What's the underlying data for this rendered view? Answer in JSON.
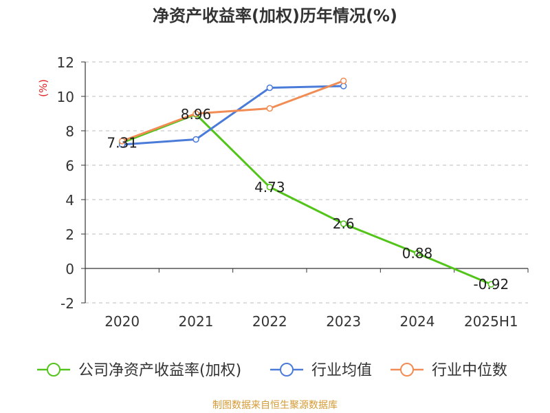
{
  "chart_data": {
    "type": "line",
    "title": "净资产收益率(加权)历年情况(%)",
    "ylabel": "(%)",
    "categories": [
      "2020",
      "2021",
      "2022",
      "2023",
      "2024",
      "2025H1"
    ],
    "ylim": [
      -2,
      12
    ],
    "yticks": [
      -2,
      0,
      2,
      4,
      6,
      8,
      10,
      12
    ],
    "grid": true,
    "legend_position": "bottom",
    "series": [
      {
        "name": "公司净资产收益率(加权)",
        "color": "#52c41a",
        "values": [
          7.31,
          8.96,
          4.73,
          2.6,
          0.88,
          -0.92
        ],
        "labels": [
          "7.31",
          "8.96",
          "4.73",
          "2.6",
          "0.88",
          "-0.92"
        ]
      },
      {
        "name": "行业均值",
        "color": "#4a7bd9",
        "values": [
          7.2,
          7.5,
          10.5,
          10.6,
          null,
          null
        ]
      },
      {
        "name": "行业中位数",
        "color": "#f08c54",
        "values": [
          7.4,
          9.0,
          9.3,
          10.9,
          null,
          null
        ]
      }
    ]
  },
  "colors": {
    "title": "#333333",
    "axis": "#333333",
    "grid": "#bbbbbb",
    "ylabel": "#e02020",
    "source": "#d49a35"
  },
  "source": "制图数据来自恒生聚源数据库"
}
